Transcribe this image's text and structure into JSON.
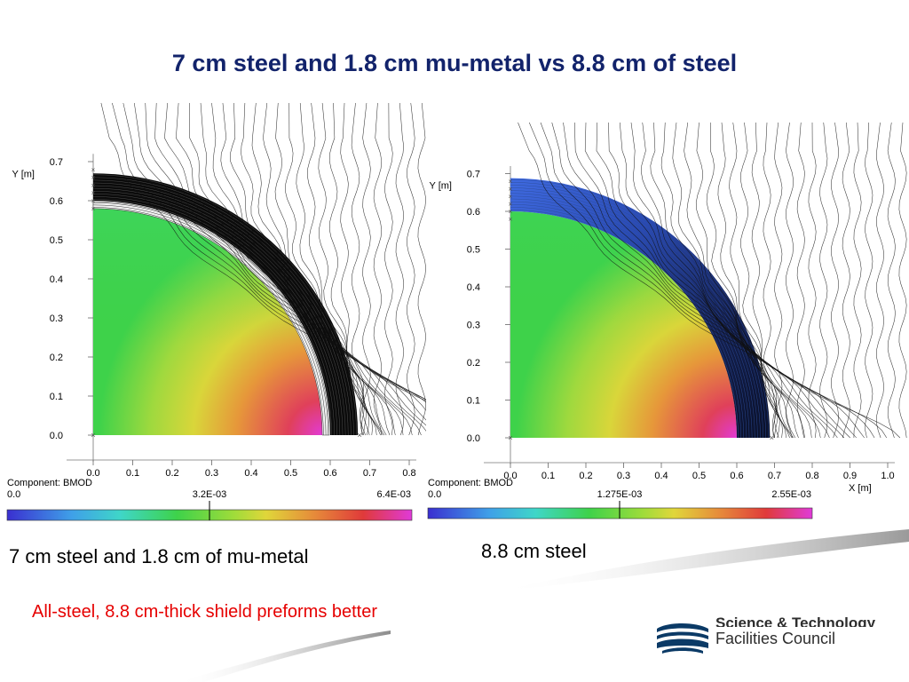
{
  "slide": {
    "title": "7 cm steel and 1.8 cm mu-metal vs 8.8 cm of steel",
    "left_caption": "7 cm steel and 1.8 cm of mu-metal",
    "right_caption": "8.8 cm steel",
    "conclusion": "All-steel, 8.8 cm-thick shield preforms better"
  },
  "logo": {
    "line1": "Science & Technology",
    "line2": "Facilities Council"
  },
  "chart_data": [
    {
      "type": "heatmap",
      "title": "",
      "xlabel": "",
      "ylabel": "Y [m]",
      "x_ticks": [
        "0.0",
        "0.1",
        "0.2",
        "0.3",
        "0.4",
        "0.5",
        "0.6",
        "0.7",
        "0.8"
      ],
      "y_ticks": [
        "0.0",
        "0.1",
        "0.2",
        "0.3",
        "0.4",
        "0.5",
        "0.6",
        "0.7"
      ],
      "xlim": [
        0,
        0.8
      ],
      "ylim": [
        0,
        0.7
      ],
      "inner_region_radius_m": 0.58,
      "shield_layers": [
        {
          "material": "mu-metal",
          "thickness_cm": 1.8
        },
        {
          "material": "steel",
          "thickness_cm": 7
        }
      ],
      "colorbar": {
        "label": "Component: BMOD",
        "min": "0.0",
        "mid": "3.2E-03",
        "max": "6.4E-03"
      },
      "interior_palette": "green-dominant, rising to red/magenta at outer radius along x-axis",
      "shield_palette": "field-line black"
    },
    {
      "type": "heatmap",
      "title": "",
      "xlabel": "X [m]",
      "ylabel": "Y [m]",
      "x_ticks": [
        "0.0",
        "0.1",
        "0.2",
        "0.3",
        "0.4",
        "0.5",
        "0.6",
        "0.7",
        "0.8",
        "0.9",
        "1.0"
      ],
      "y_ticks": [
        "0.0",
        "0.1",
        "0.2",
        "0.3",
        "0.4",
        "0.5",
        "0.6",
        "0.7"
      ],
      "xlim": [
        0,
        1.0
      ],
      "ylim": [
        0,
        0.7
      ],
      "inner_region_radius_m": 0.6,
      "shield_layers": [
        {
          "material": "steel",
          "thickness_cm": 8.8
        }
      ],
      "colorbar": {
        "label": "Component: BMOD",
        "min": "0.0",
        "mid": "1.275E-03",
        "max": "2.55E-03"
      },
      "interior_palette": "green at top, yellow/orange, red to magenta at outer radius along x-axis",
      "shield_palette": "blue top to dark navy"
    }
  ]
}
